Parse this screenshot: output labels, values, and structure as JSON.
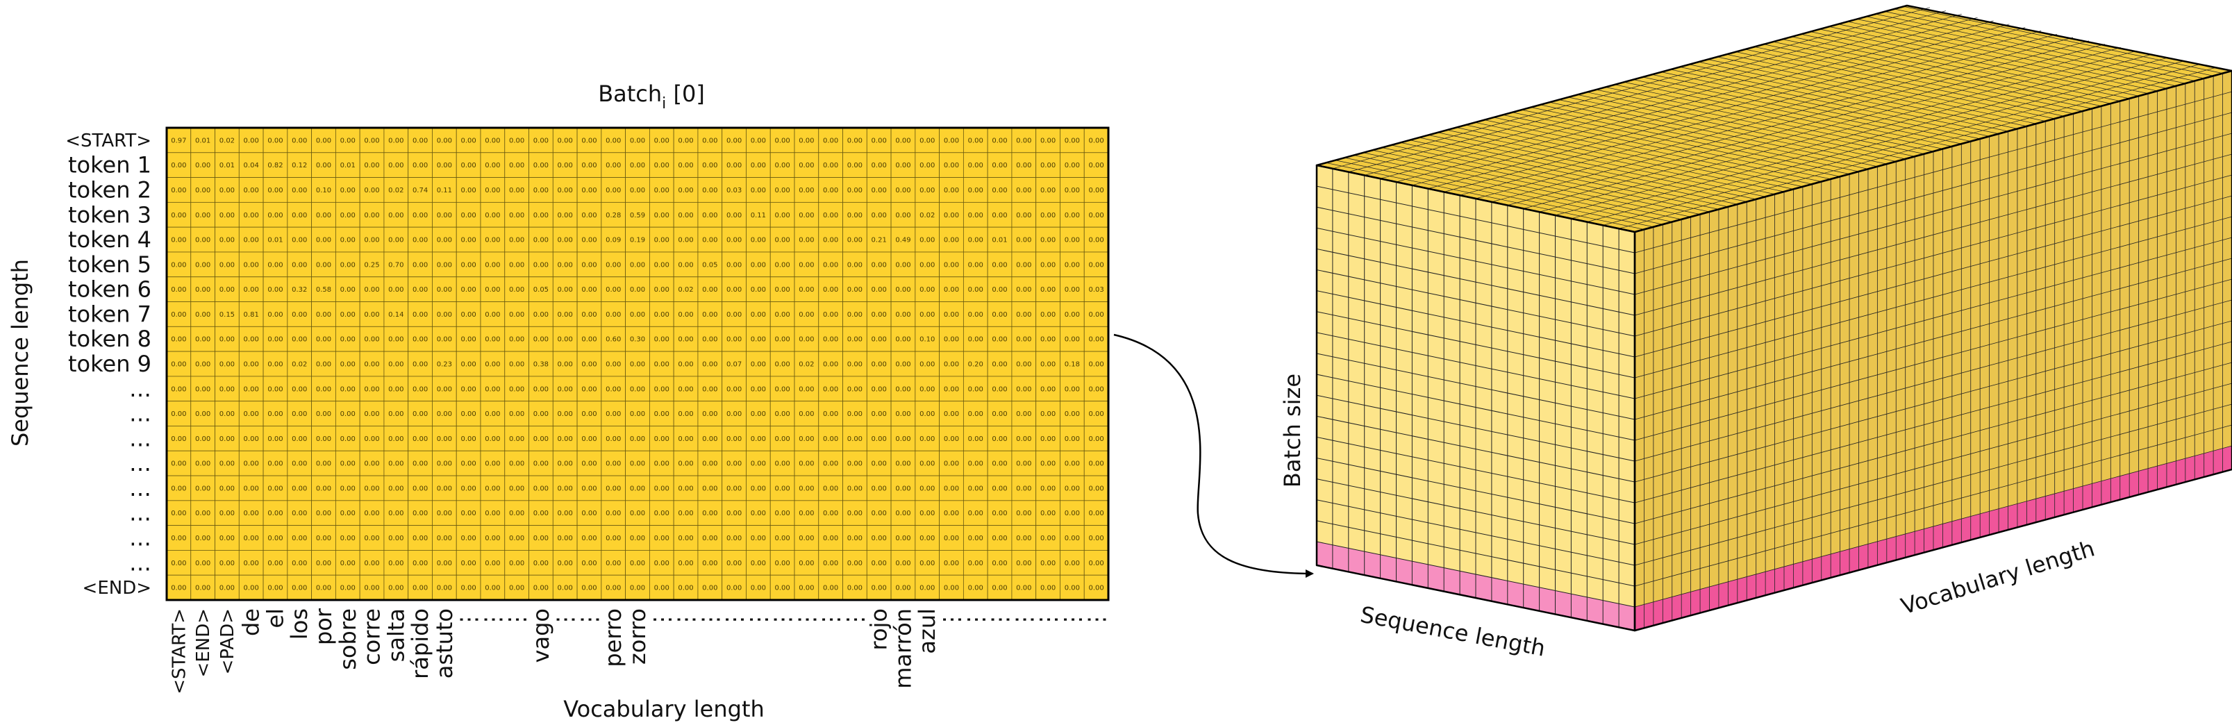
{
  "title": {
    "main": "Batch",
    "subscript": "i",
    "suffix": " [0]"
  },
  "row_axis_label": "Sequence length",
  "col_axis_label": "Vocabulary length",
  "rows": [
    "<START>",
    "token 1",
    "token 2",
    "token 3",
    "token 4",
    "token 5",
    "token 6",
    "token 7",
    "token 8",
    "token 9",
    "…",
    "…",
    "…",
    "…",
    "…",
    "…",
    "…",
    "…",
    "<END>"
  ],
  "cols": [
    "<START>",
    "<END>",
    "<PAD>",
    "de",
    "el",
    "los",
    "por",
    "sobre",
    "corre",
    "salta",
    "rápido",
    "astuto",
    "⋮",
    "⋮",
    "⋮",
    "vago",
    "⋮",
    "⋮",
    "perro",
    "zorro",
    "⋮",
    "⋮",
    "⋮",
    "⋮",
    "⋮",
    "⋮",
    "⋮",
    "⋮",
    "⋮",
    "rojo",
    "marrón",
    "azul",
    "⋮",
    "⋮",
    "⋮",
    "⋮",
    "⋮",
    "⋮",
    "⋮"
  ],
  "matrix": [
    [
      0.97,
      0.01,
      0.02,
      0.0,
      0.0,
      0.0,
      0.0,
      0.0,
      0.0,
      0.0,
      0.0,
      0.0,
      0.0,
      0.0,
      0.0,
      0.0,
      0.0,
      0.0,
      0.0,
      0.0,
      0.0,
      0.0,
      0.0,
      0.0,
      0.0,
      0.0,
      0.0,
      0.0,
      0.0,
      0.0,
      0.0,
      0.0,
      0.0,
      0.0,
      0.0,
      0.0,
      0.0,
      0.0,
      0.0
    ],
    [
      0.0,
      0.0,
      0.01,
      0.04,
      0.82,
      0.12,
      0.0,
      0.01,
      0.0,
      0.0,
      0.0,
      0.0,
      0.0,
      0.0,
      0.0,
      0.0,
      0.0,
      0.0,
      0.0,
      0.0,
      0.0,
      0.0,
      0.0,
      0.0,
      0.0,
      0.0,
      0.0,
      0.0,
      0.0,
      0.0,
      0.0,
      0.0,
      0.0,
      0.0,
      0.0,
      0.0,
      0.0,
      0.0,
      0.0
    ],
    [
      0.0,
      0.0,
      0.0,
      0.0,
      0.0,
      0.0,
      0.1,
      0.0,
      0.0,
      0.02,
      0.74,
      0.11,
      0.0,
      0.0,
      0.0,
      0.0,
      0.0,
      0.0,
      0.0,
      0.0,
      0.0,
      0.0,
      0.0,
      0.03,
      0.0,
      0.0,
      0.0,
      0.0,
      0.0,
      0.0,
      0.0,
      0.0,
      0.0,
      0.0,
      0.0,
      0.0,
      0.0,
      0.0,
      0.0
    ],
    [
      0.0,
      0.0,
      0.0,
      0.0,
      0.0,
      0.0,
      0.0,
      0.0,
      0.0,
      0.0,
      0.0,
      0.0,
      0.0,
      0.0,
      0.0,
      0.0,
      0.0,
      0.0,
      0.28,
      0.59,
      0.0,
      0.0,
      0.0,
      0.0,
      0.11,
      0.0,
      0.0,
      0.0,
      0.0,
      0.0,
      0.0,
      0.02,
      0.0,
      0.0,
      0.0,
      0.0,
      0.0,
      0.0,
      0.0
    ],
    [
      0.0,
      0.0,
      0.0,
      0.0,
      0.01,
      0.0,
      0.0,
      0.0,
      0.0,
      0.0,
      0.0,
      0.0,
      0.0,
      0.0,
      0.0,
      0.0,
      0.0,
      0.0,
      0.09,
      0.19,
      0.0,
      0.0,
      0.0,
      0.0,
      0.0,
      0.0,
      0.0,
      0.0,
      0.0,
      0.21,
      0.49,
      0.0,
      0.0,
      0.0,
      0.01,
      0.0,
      0.0,
      0.0,
      0.0
    ],
    [
      0.0,
      0.0,
      0.0,
      0.0,
      0.0,
      0.0,
      0.0,
      0.0,
      0.25,
      0.7,
      0.0,
      0.0,
      0.0,
      0.0,
      0.0,
      0.0,
      0.0,
      0.0,
      0.0,
      0.0,
      0.0,
      0.0,
      0.05,
      0.0,
      0.0,
      0.0,
      0.0,
      0.0,
      0.0,
      0.0,
      0.0,
      0.0,
      0.0,
      0.0,
      0.0,
      0.0,
      0.0,
      0.0,
      0.0
    ],
    [
      0.0,
      0.0,
      0.0,
      0.0,
      0.0,
      0.32,
      0.58,
      0.0,
      0.0,
      0.0,
      0.0,
      0.0,
      0.0,
      0.0,
      0.0,
      0.05,
      0.0,
      0.0,
      0.0,
      0.0,
      0.0,
      0.02,
      0.0,
      0.0,
      0.0,
      0.0,
      0.0,
      0.0,
      0.0,
      0.0,
      0.0,
      0.0,
      0.0,
      0.0,
      0.0,
      0.0,
      0.0,
      0.0,
      0.03
    ],
    [
      0.0,
      0.0,
      0.15,
      0.81,
      0.0,
      0.0,
      0.0,
      0.0,
      0.0,
      0.14,
      0.0,
      0.0,
      0.0,
      0.0,
      0.0,
      0.0,
      0.0,
      0.0,
      0.0,
      0.0,
      0.0,
      0.0,
      0.0,
      0.0,
      0.0,
      0.0,
      0.0,
      0.0,
      0.0,
      0.0,
      0.0,
      0.0,
      0.0,
      0.0,
      0.0,
      0.0,
      0.0,
      0.0,
      0.0
    ],
    [
      0.0,
      0.0,
      0.0,
      0.0,
      0.0,
      0.0,
      0.0,
      0.0,
      0.0,
      0.0,
      0.0,
      0.0,
      0.0,
      0.0,
      0.0,
      0.0,
      0.0,
      0.0,
      0.6,
      0.3,
      0.0,
      0.0,
      0.0,
      0.0,
      0.0,
      0.0,
      0.0,
      0.0,
      0.0,
      0.0,
      0.0,
      0.1,
      0.0,
      0.0,
      0.0,
      0.0,
      0.0,
      0.0,
      0.0
    ],
    [
      0.0,
      0.0,
      0.0,
      0.0,
      0.0,
      0.02,
      0.0,
      0.0,
      0.0,
      0.0,
      0.0,
      0.23,
      0.0,
      0.0,
      0.0,
      0.38,
      0.0,
      0.0,
      0.0,
      0.0,
      0.0,
      0.0,
      0.0,
      0.07,
      0.0,
      0.0,
      0.02,
      0.0,
      0.0,
      0.0,
      0.0,
      0.0,
      0.0,
      0.2,
      0.0,
      0.0,
      0.0,
      0.18,
      0.0
    ],
    [
      0.0,
      0.0,
      0.0,
      0.0,
      0.0,
      0.0,
      0.0,
      0.0,
      0.0,
      0.0,
      0.0,
      0.0,
      0.0,
      0.0,
      0.0,
      0.0,
      0.0,
      0.0,
      0.0,
      0.0,
      0.0,
      0.0,
      0.0,
      0.0,
      0.0,
      0.0,
      0.0,
      0.0,
      0.0,
      0.0,
      0.0,
      0.0,
      0.0,
      0.0,
      0.0,
      0.0,
      0.0,
      0.0,
      0.0
    ],
    [
      0.0,
      0.0,
      0.0,
      0.0,
      0.0,
      0.0,
      0.0,
      0.0,
      0.0,
      0.0,
      0.0,
      0.0,
      0.0,
      0.0,
      0.0,
      0.0,
      0.0,
      0.0,
      0.0,
      0.0,
      0.0,
      0.0,
      0.0,
      0.0,
      0.0,
      0.0,
      0.0,
      0.0,
      0.0,
      0.0,
      0.0,
      0.0,
      0.0,
      0.0,
      0.0,
      0.0,
      0.0,
      0.0,
      0.0
    ],
    [
      0.0,
      0.0,
      0.0,
      0.0,
      0.0,
      0.0,
      0.0,
      0.0,
      0.0,
      0.0,
      0.0,
      0.0,
      0.0,
      0.0,
      0.0,
      0.0,
      0.0,
      0.0,
      0.0,
      0.0,
      0.0,
      0.0,
      0.0,
      0.0,
      0.0,
      0.0,
      0.0,
      0.0,
      0.0,
      0.0,
      0.0,
      0.0,
      0.0,
      0.0,
      0.0,
      0.0,
      0.0,
      0.0,
      0.0
    ],
    [
      0.0,
      0.0,
      0.0,
      0.0,
      0.0,
      0.0,
      0.0,
      0.0,
      0.0,
      0.0,
      0.0,
      0.0,
      0.0,
      0.0,
      0.0,
      0.0,
      0.0,
      0.0,
      0.0,
      0.0,
      0.0,
      0.0,
      0.0,
      0.0,
      0.0,
      0.0,
      0.0,
      0.0,
      0.0,
      0.0,
      0.0,
      0.0,
      0.0,
      0.0,
      0.0,
      0.0,
      0.0,
      0.0,
      0.0
    ],
    [
      0.0,
      0.0,
      0.0,
      0.0,
      0.0,
      0.0,
      0.0,
      0.0,
      0.0,
      0.0,
      0.0,
      0.0,
      0.0,
      0.0,
      0.0,
      0.0,
      0.0,
      0.0,
      0.0,
      0.0,
      0.0,
      0.0,
      0.0,
      0.0,
      0.0,
      0.0,
      0.0,
      0.0,
      0.0,
      0.0,
      0.0,
      0.0,
      0.0,
      0.0,
      0.0,
      0.0,
      0.0,
      0.0,
      0.0
    ],
    [
      0.0,
      0.0,
      0.0,
      0.0,
      0.0,
      0.0,
      0.0,
      0.0,
      0.0,
      0.0,
      0.0,
      0.0,
      0.0,
      0.0,
      0.0,
      0.0,
      0.0,
      0.0,
      0.0,
      0.0,
      0.0,
      0.0,
      0.0,
      0.0,
      0.0,
      0.0,
      0.0,
      0.0,
      0.0,
      0.0,
      0.0,
      0.0,
      0.0,
      0.0,
      0.0,
      0.0,
      0.0,
      0.0,
      0.0
    ],
    [
      0.0,
      0.0,
      0.0,
      0.0,
      0.0,
      0.0,
      0.0,
      0.0,
      0.0,
      0.0,
      0.0,
      0.0,
      0.0,
      0.0,
      0.0,
      0.0,
      0.0,
      0.0,
      0.0,
      0.0,
      0.0,
      0.0,
      0.0,
      0.0,
      0.0,
      0.0,
      0.0,
      0.0,
      0.0,
      0.0,
      0.0,
      0.0,
      0.0,
      0.0,
      0.0,
      0.0,
      0.0,
      0.0,
      0.0
    ],
    [
      0.0,
      0.0,
      0.0,
      0.0,
      0.0,
      0.0,
      0.0,
      0.0,
      0.0,
      0.0,
      0.0,
      0.0,
      0.0,
      0.0,
      0.0,
      0.0,
      0.0,
      0.0,
      0.0,
      0.0,
      0.0,
      0.0,
      0.0,
      0.0,
      0.0,
      0.0,
      0.0,
      0.0,
      0.0,
      0.0,
      0.0,
      0.0,
      0.0,
      0.0,
      0.0,
      0.0,
      0.0,
      0.0,
      0.0
    ],
    [
      0.0,
      0.0,
      0.0,
      0.0,
      0.0,
      0.0,
      0.0,
      0.0,
      0.0,
      0.0,
      0.0,
      0.0,
      0.0,
      0.0,
      0.0,
      0.0,
      0.0,
      0.0,
      0.0,
      0.0,
      0.0,
      0.0,
      0.0,
      0.0,
      0.0,
      0.0,
      0.0,
      0.0,
      0.0,
      0.0,
      0.0,
      0.0,
      0.0,
      0.0,
      0.0,
      0.0,
      0.0,
      0.0,
      0.0
    ]
  ],
  "cube": {
    "vertical_label": "Batch size",
    "front_bottom_label": "Sequence length",
    "side_bottom_label": "Vocabulary length",
    "front_cols": 20,
    "depth_cols": 64,
    "layers": 18
  },
  "colors": {
    "cell": "#fdd22f",
    "cube_top": "#f2cb3f",
    "cube_front": "#fde58a",
    "cube_side": "#eac54e",
    "highlight_front": "#f78fc0",
    "highlight_side": "#f0559a",
    "line": "#000000"
  }
}
